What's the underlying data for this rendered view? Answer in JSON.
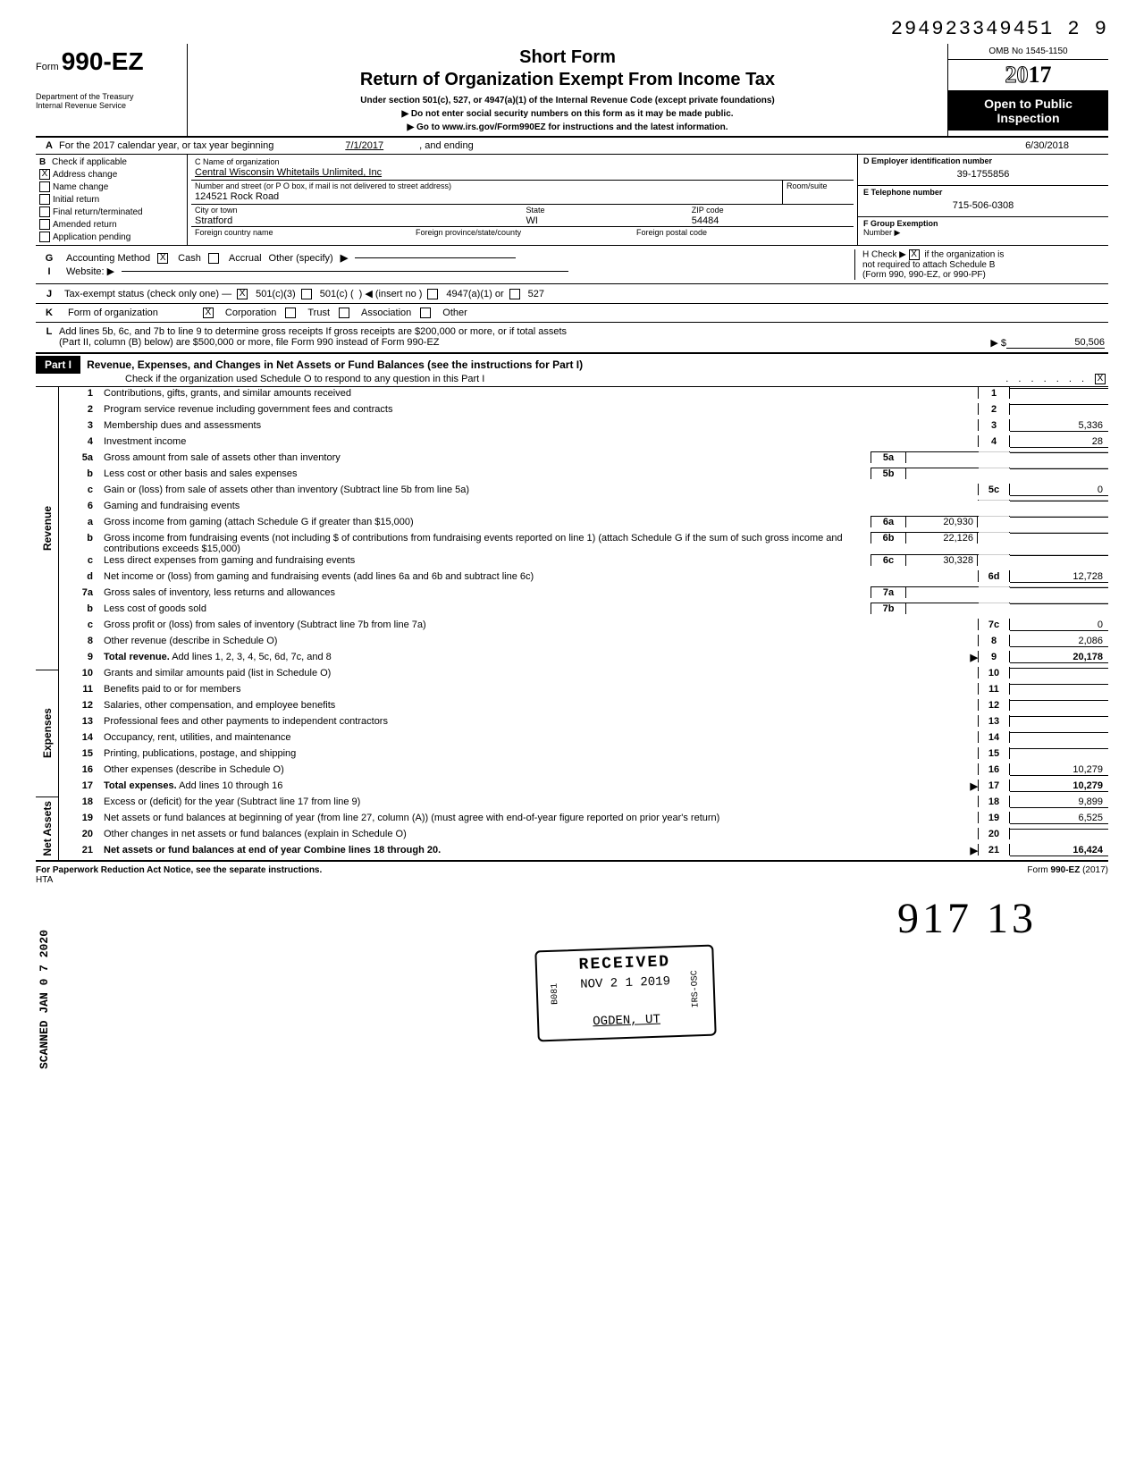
{
  "top_id": "294923349451 2 9",
  "form": {
    "prefix": "Form",
    "name": "990-EZ"
  },
  "dept": "Department of the Treasury\nInternal Revenue Service",
  "title": {
    "short": "Short Form",
    "main": "Return of Organization Exempt From Income Tax",
    "sub": "Under section 501(c), 527, or 4947(a)(1) of the Internal Revenue Code (except private foundations)",
    "line1": "▶   Do not enter social security numbers on this form as it may be made public.",
    "line2": "▶   Go to www.irs.gov/Form990EZ for instructions and the latest information."
  },
  "omb": "OMB No 1545-1150",
  "year": "2017",
  "open": "Open to Public Inspection",
  "line_a": {
    "label": "For the 2017 calendar year, or tax year beginning",
    "begin": "7/1/2017",
    "mid": ", and ending",
    "end": "6/30/2018"
  },
  "check_items": [
    {
      "letter": "B",
      "label": "Check if applicable",
      "checked": false
    },
    {
      "letter": "",
      "label": "Address change",
      "checked": true
    },
    {
      "letter": "",
      "label": "Name change",
      "checked": false
    },
    {
      "letter": "",
      "label": "Initial return",
      "checked": false
    },
    {
      "letter": "",
      "label": "Final return/terminated",
      "checked": false
    },
    {
      "letter": "",
      "label": "Amended return",
      "checked": false
    },
    {
      "letter": "",
      "label": "Application pending",
      "checked": false
    }
  ],
  "org": {
    "name_label": "C  Name of organization",
    "name": "Central Wisconsin Whitetails Unlimited, Inc",
    "addr_label": "Number and street (or P O  box, if mail is not delivered to street address)",
    "room_label": "Room/suite",
    "addr": "124521 Rock Road",
    "city_label": "City or town",
    "state_label": "State",
    "zip_label": "ZIP code",
    "city": "Stratford",
    "state": "WI",
    "zip": "54484",
    "foreign_country_label": "Foreign country name",
    "foreign_prov_label": "Foreign province/state/county",
    "foreign_postal_label": "Foreign postal code"
  },
  "d": {
    "label": "D  Employer identification number",
    "val": "39-1755856"
  },
  "e": {
    "label": "E  Telephone number",
    "val": "715-506-0308"
  },
  "f": {
    "label": "F  Group Exemption",
    "label2": "Number ▶"
  },
  "g": {
    "label": "Accounting Method",
    "cash": "Cash",
    "accrual": "Accrual",
    "other": "Other (specify)"
  },
  "i": {
    "label": "Website: ▶"
  },
  "h": {
    "line1": "H  Check ▶",
    "line2": "if the organization is",
    "line3": "not required to attach Schedule B",
    "line4": "(Form 990, 990-EZ, or 990-PF)"
  },
  "j": {
    "label": "Tax-exempt status (check only one) —",
    "c3": "501(c)(3)",
    "c": "501(c) (",
    "insert": ") ◀ (insert no )",
    "a1": "4947(a)(1) or",
    "527": "527"
  },
  "k": {
    "label": "Form of organization",
    "corp": "Corporation",
    "trust": "Trust",
    "assoc": "Association",
    "other": "Other"
  },
  "l": {
    "line1": "Add lines 5b, 6c, and 7b to line 9 to determine gross receipts  If gross receipts are $200,000 or more, or if total assets",
    "line2": "(Part II, column (B) below) are $500,000 or more, file Form 990 instead of Form 990-EZ",
    "arrow": "▶ $",
    "val": "50,506"
  },
  "part1": {
    "tag": "Part I",
    "title": "Revenue, Expenses, and Changes in Net Assets or Fund Balances (see the instructions for Part I)",
    "sub": "Check if the organization used Schedule O to respond to any question in this Part I",
    "checked": true
  },
  "stamp": {
    "received": "RECEIVED",
    "b081": "B081",
    "date": "NOV 2 1 2019",
    "place": "OGDEN, UT",
    "side": "IRS-OSC"
  },
  "scan_stamp": "SCANNED JAN 0 7 2020",
  "sections": {
    "revenue_label": "Revenue",
    "expenses_label": "Expenses",
    "netassets_label": "Net Assets"
  },
  "lines": [
    {
      "n": "1",
      "d": "Contributions, gifts, grants, and similar amounts received",
      "en": "1",
      "ev": ""
    },
    {
      "n": "2",
      "d": "Program service revenue including government fees and contracts",
      "en": "2",
      "ev": ""
    },
    {
      "n": "3",
      "d": "Membership dues and assessments",
      "en": "3",
      "ev": "5,336"
    },
    {
      "n": "4",
      "d": "Investment income",
      "en": "4",
      "ev": "28"
    },
    {
      "n": "5a",
      "d": "Gross amount from sale of assets other than inventory",
      "mn": "5a",
      "mv": "",
      "shaded_end": true
    },
    {
      "n": "b",
      "d": "Less  cost or other basis and sales expenses",
      "mn": "5b",
      "mv": "",
      "shaded_end": true
    },
    {
      "n": "c",
      "d": "Gain or (loss) from sale of assets other than inventory (Subtract line 5b from line 5a)",
      "en": "5c",
      "ev": "0"
    },
    {
      "n": "6",
      "d": "Gaming and fundraising events",
      "shaded_end": true
    },
    {
      "n": "a",
      "d": "Gross income from gaming (attach Schedule G if greater than $15,000)",
      "mn": "6a",
      "mv": "20,930",
      "shaded_end": true
    },
    {
      "n": "b",
      "d": "Gross income from fundraising events (not including     $                        of contributions from fundraising events reported on line 1) (attach Schedule G if the sum of such gross income and contributions exceeds $15,000)",
      "mn": "6b",
      "mv": "22,126",
      "shaded_end": true
    },
    {
      "n": "c",
      "d": "Less  direct expenses from gaming and fundraising events",
      "mn": "6c",
      "mv": "30,328",
      "shaded_end": true
    },
    {
      "n": "d",
      "d": "Net income or (loss) from gaming and fundraising events (add lines 6a and 6b and subtract line 6c)",
      "en": "6d",
      "ev": "12,728"
    },
    {
      "n": "7a",
      "d": "Gross sales of inventory, less returns and allowances",
      "mn": "7a",
      "mv": "",
      "shaded_end": true
    },
    {
      "n": "b",
      "d": "Less  cost of goods sold",
      "mn": "7b",
      "mv": "",
      "shaded_end": true
    },
    {
      "n": "c",
      "d": "Gross profit or (loss) from sales of inventory (Subtract line 7b from line 7a)",
      "en": "7c",
      "ev": "0"
    },
    {
      "n": "8",
      "d": "Other revenue (describe in Schedule O)",
      "en": "8",
      "ev": "2,086"
    },
    {
      "n": "9",
      "d": "Total revenue. Add lines 1, 2, 3, 4, 5c, 6d, 7c, and 8",
      "arrow": true,
      "en": "9",
      "ev": "20,178",
      "bold": true
    },
    {
      "n": "10",
      "d": "Grants and similar amounts paid (list in Schedule O)",
      "en": "10",
      "ev": ""
    },
    {
      "n": "11",
      "d": "Benefits paid to or for members",
      "en": "11",
      "ev": ""
    },
    {
      "n": "12",
      "d": "Salaries, other compensation, and employee benefits",
      "en": "12",
      "ev": ""
    },
    {
      "n": "13",
      "d": "Professional fees and other payments to independent contractors",
      "en": "13",
      "ev": ""
    },
    {
      "n": "14",
      "d": "Occupancy, rent, utilities, and maintenance",
      "en": "14",
      "ev": ""
    },
    {
      "n": "15",
      "d": "Printing, publications, postage, and shipping",
      "en": "15",
      "ev": ""
    },
    {
      "n": "16",
      "d": "Other expenses (describe in Schedule O)",
      "en": "16",
      "ev": "10,279"
    },
    {
      "n": "17",
      "d": "Total expenses. Add lines 10 through 16",
      "arrow": true,
      "en": "17",
      "ev": "10,279",
      "bold": true
    },
    {
      "n": "18",
      "d": "Excess or (deficit) for the year (Subtract line 17 from line 9)",
      "en": "18",
      "ev": "9,899"
    },
    {
      "n": "19",
      "d": "Net assets or fund balances at beginning of year (from line 27, column (A)) (must agree with end-of-year figure reported on prior year's return)",
      "en": "19",
      "ev": "6,525"
    },
    {
      "n": "20",
      "d": "Other changes in net assets or fund balances (explain in Schedule O)",
      "en": "20",
      "ev": ""
    },
    {
      "n": "21",
      "d": "Net assets or fund balances at end of year  Combine lines 18 through 20",
      "arrow": true,
      "en": "21",
      "ev": "16,424",
      "bold": true
    }
  ],
  "footer": {
    "left": "For Paperwork Reduction Act Notice, see the separate instructions.",
    "hta": "HTA",
    "right": "Form 990-EZ (2017)"
  },
  "signature": "917  13"
}
